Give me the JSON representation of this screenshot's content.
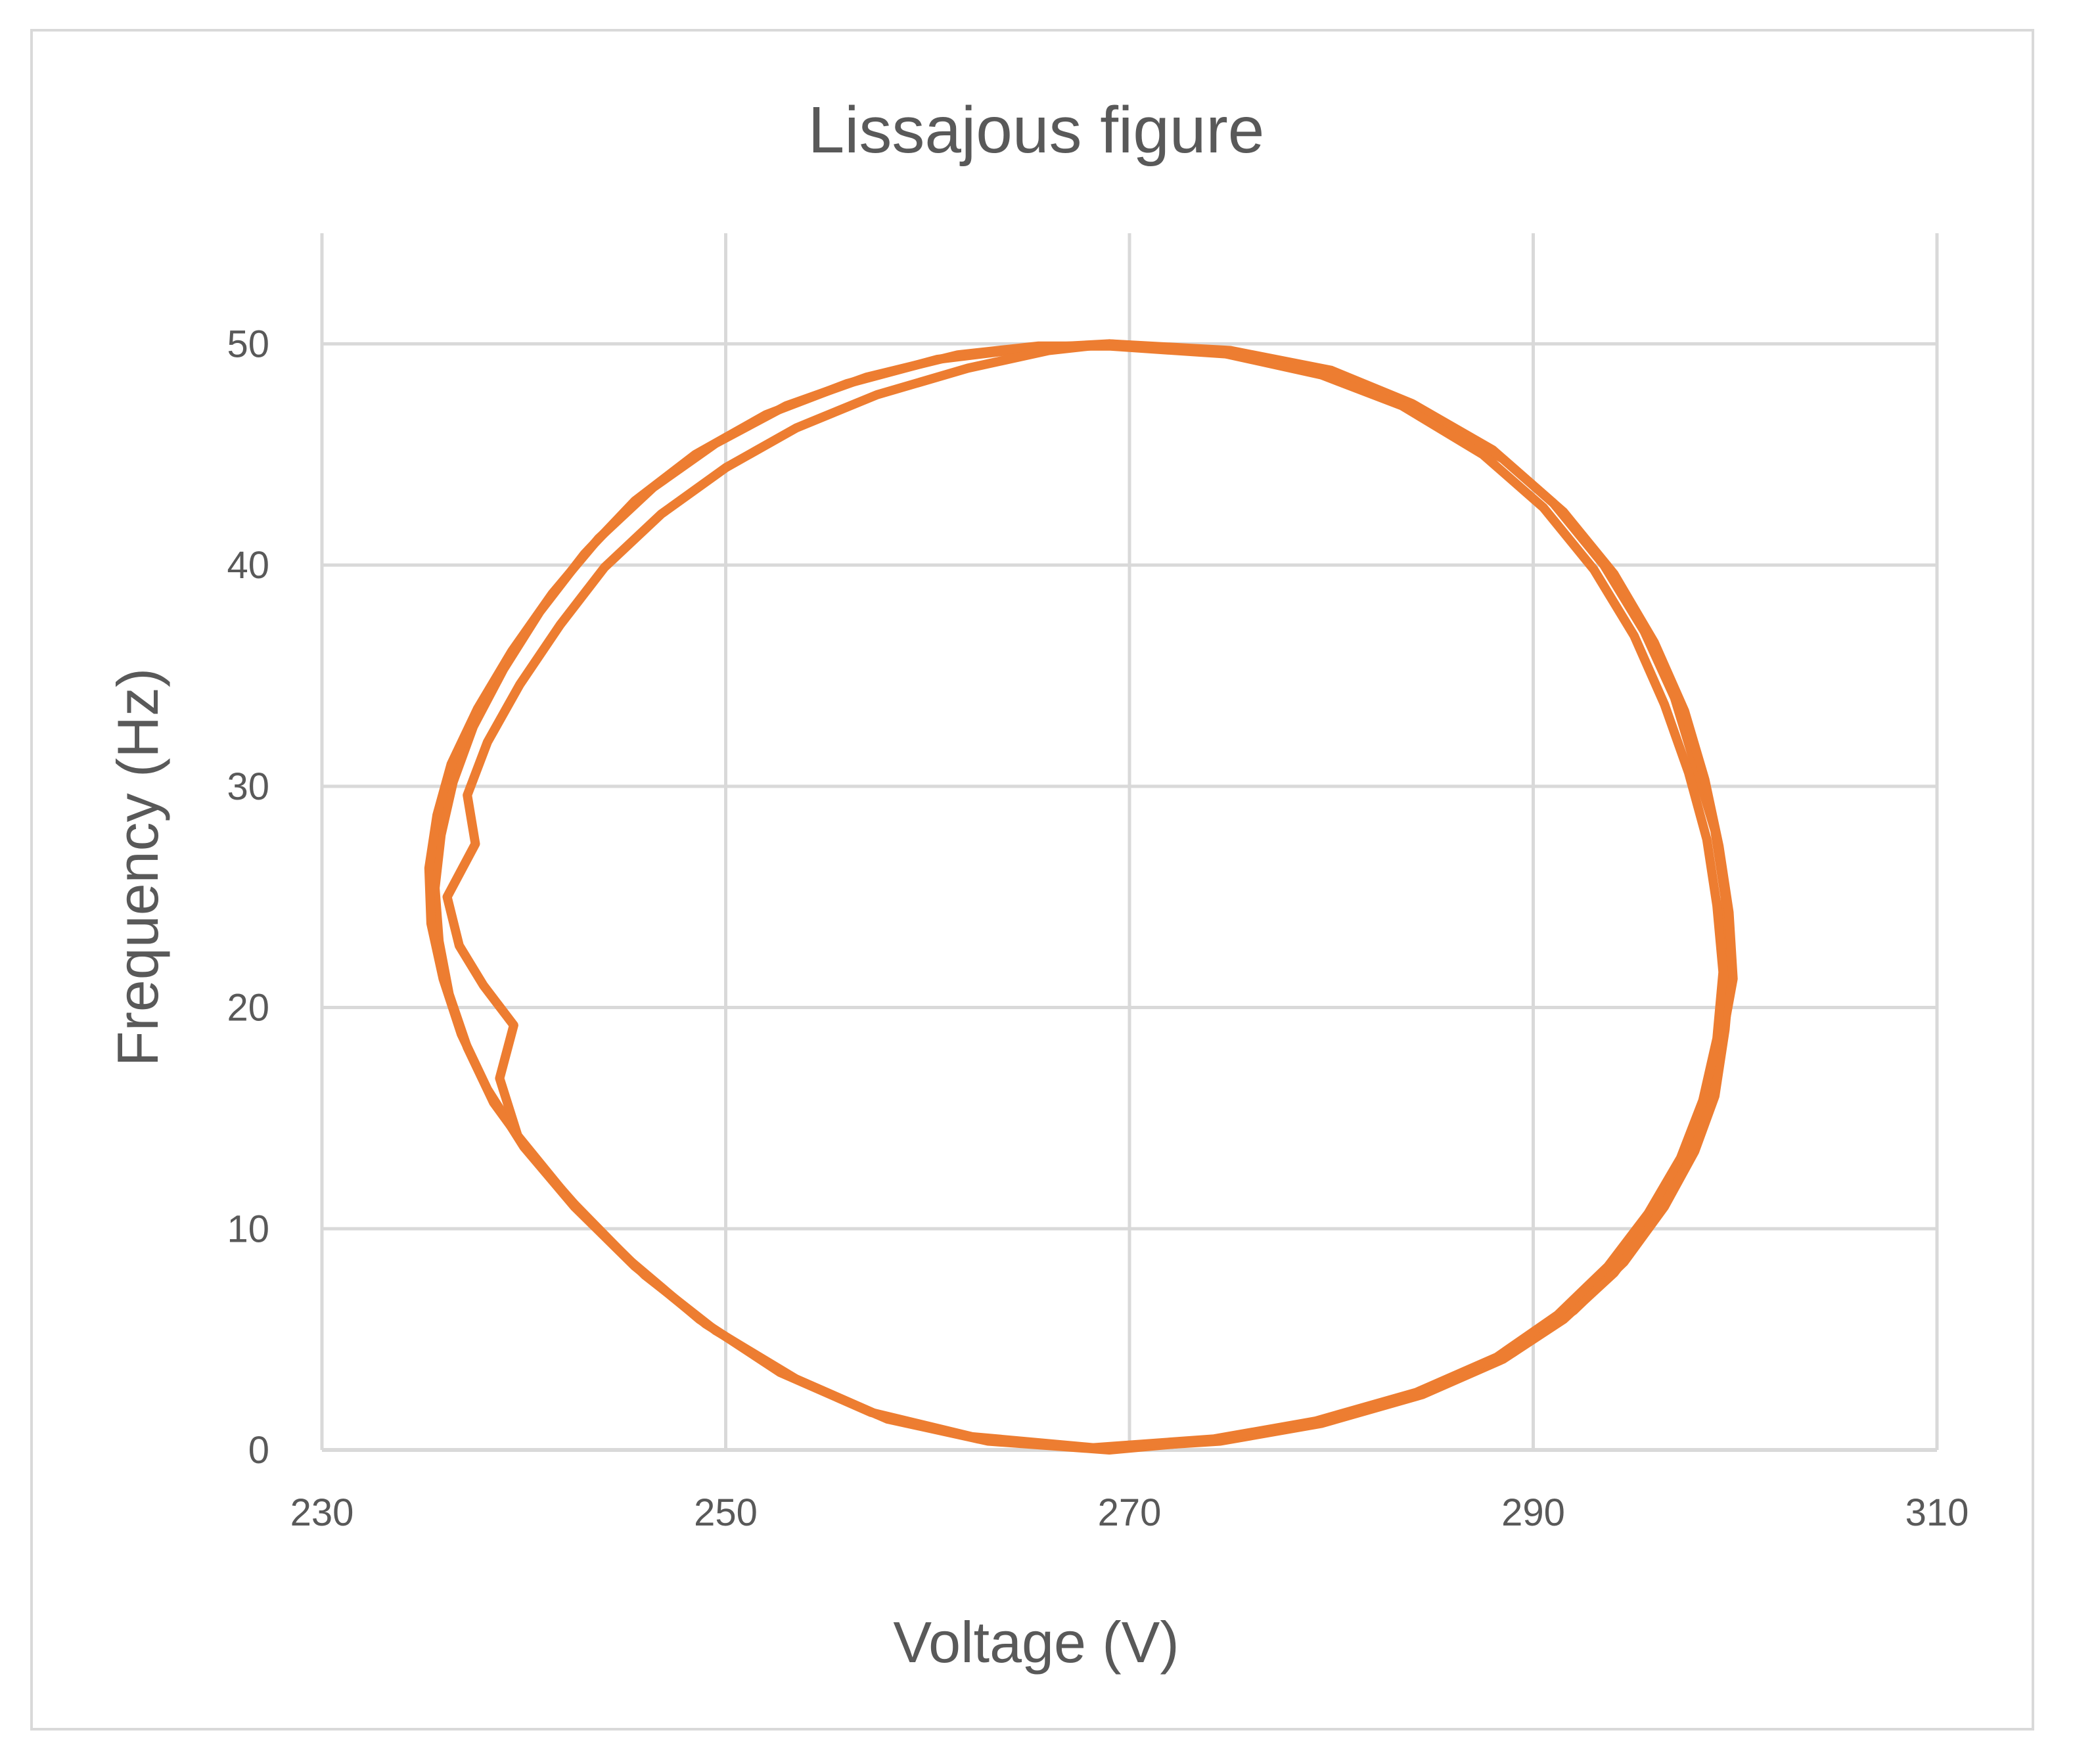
{
  "chart_data": {
    "type": "scatter",
    "title": "Lissajous figure",
    "xlabel": "Voltage (V)",
    "ylabel": "Frequency (Hz)",
    "xlim": [
      230,
      310
    ],
    "ylim": [
      0,
      55
    ],
    "xticks": [
      230,
      250,
      270,
      290,
      310
    ],
    "yticks": [
      0,
      10,
      20,
      30,
      40,
      50
    ],
    "grid": true,
    "legend": "none",
    "series_color": "#ED7D31",
    "grid_color": "#D9D9D9",
    "series": [
      {
        "points": [
          [
            269,
            50
          ],
          [
            275,
            49.7
          ],
          [
            280,
            48.8
          ],
          [
            284,
            47.3
          ],
          [
            288,
            45.2
          ],
          [
            291,
            42.8
          ],
          [
            293.5,
            40
          ],
          [
            295.5,
            37
          ],
          [
            297,
            34
          ],
          [
            298,
            31
          ],
          [
            299,
            28
          ],
          [
            299.5,
            25
          ],
          [
            299.8,
            22
          ],
          [
            299.5,
            19
          ],
          [
            299,
            16
          ],
          [
            298,
            13.5
          ],
          [
            296.5,
            11
          ],
          [
            294.5,
            8.5
          ],
          [
            292,
            6.3
          ],
          [
            289,
            4.4
          ],
          [
            285,
            2.8
          ],
          [
            280,
            1.4
          ],
          [
            275,
            0.5
          ],
          [
            269,
            0
          ],
          [
            263,
            0.4
          ],
          [
            258,
            1.4
          ],
          [
            253.5,
            3.2
          ],
          [
            249.5,
            5.4
          ],
          [
            246,
            7.9
          ],
          [
            243,
            10.6
          ],
          [
            240.5,
            13.2
          ],
          [
            238.5,
            15.7
          ],
          [
            237.2,
            18.2
          ],
          [
            236.3,
            20.6
          ],
          [
            235.8,
            23
          ],
          [
            235.6,
            25.4
          ],
          [
            235.9,
            27.8
          ],
          [
            236.5,
            30.2
          ],
          [
            237.5,
            32.7
          ],
          [
            239,
            35.3
          ],
          [
            240.8,
            37.9
          ],
          [
            243,
            40.5
          ],
          [
            245.5,
            42.9
          ],
          [
            248.5,
            45
          ],
          [
            252,
            46.8
          ],
          [
            256,
            48.2
          ],
          [
            260.5,
            49.3
          ],
          [
            265,
            49.8
          ],
          [
            269,
            50
          ]
        ]
      },
      {
        "points": [
          [
            269,
            49.9
          ],
          [
            275.5,
            49.5
          ],
          [
            280.5,
            48.5
          ],
          [
            284.5,
            47
          ],
          [
            288.5,
            44.8
          ],
          [
            291.5,
            42.4
          ],
          [
            294,
            39.6
          ],
          [
            296,
            36.5
          ],
          [
            297.5,
            33.4
          ],
          [
            298.5,
            30.3
          ],
          [
            299.2,
            27.3
          ],
          [
            299.7,
            24.3
          ],
          [
            299.9,
            21.3
          ],
          [
            299.3,
            18.3
          ],
          [
            298.7,
            15.5
          ],
          [
            297.6,
            12.9
          ],
          [
            296,
            10.4
          ],
          [
            294,
            8
          ],
          [
            291.5,
            5.9
          ],
          [
            288.5,
            4.1
          ],
          [
            284.5,
            2.5
          ],
          [
            279.5,
            1.2
          ],
          [
            274.5,
            0.4
          ],
          [
            268.5,
            0.05
          ],
          [
            262.5,
            0.5
          ],
          [
            257.5,
            1.6
          ],
          [
            253,
            3.4
          ],
          [
            249,
            5.7
          ],
          [
            245.5,
            8.3
          ],
          [
            242.5,
            11
          ],
          [
            240,
            13.7
          ],
          [
            238.2,
            16.3
          ],
          [
            236.9,
            18.8
          ],
          [
            236,
            21.3
          ],
          [
            235.4,
            23.8
          ],
          [
            235.3,
            26.3
          ],
          [
            235.7,
            28.7
          ],
          [
            236.4,
            31
          ],
          [
            237.7,
            33.5
          ],
          [
            239.4,
            36.1
          ],
          [
            241.4,
            38.7
          ],
          [
            243.7,
            41.2
          ],
          [
            246.4,
            43.5
          ],
          [
            249.5,
            45.5
          ],
          [
            253,
            47.2
          ],
          [
            257,
            48.5
          ],
          [
            261.5,
            49.5
          ],
          [
            265.5,
            49.9
          ],
          [
            269,
            49.9
          ]
        ]
      },
      {
        "points": [
          [
            269,
            50
          ],
          [
            274.5,
            49.6
          ],
          [
            279.5,
            48.6
          ],
          [
            283.5,
            47.2
          ],
          [
            287.5,
            45
          ],
          [
            290.5,
            42.6
          ],
          [
            293,
            39.8
          ],
          [
            295,
            36.8
          ],
          [
            296.5,
            33.7
          ],
          [
            297.7,
            30.6
          ],
          [
            298.6,
            27.6
          ],
          [
            299.1,
            24.6
          ],
          [
            299.4,
            21.6
          ],
          [
            299.1,
            18.6
          ],
          [
            298.4,
            15.8
          ],
          [
            297.3,
            13.2
          ],
          [
            295.7,
            10.7
          ],
          [
            293.7,
            8.3
          ],
          [
            291.2,
            6.1
          ],
          [
            288.2,
            4.2
          ],
          [
            284.2,
            2.6
          ],
          [
            279.2,
            1.3
          ],
          [
            274.2,
            0.5
          ],
          [
            268.2,
            0.1
          ],
          [
            262.2,
            0.6
          ],
          [
            257.2,
            1.7
          ],
          [
            252.7,
            3.5
          ],
          [
            248.7,
            5.9
          ],
          [
            245.2,
            8.6
          ],
          [
            242.2,
            11.4
          ],
          [
            239.7,
            14.2
          ],
          [
            238.8,
            16.8
          ],
          [
            239.5,
            19.2
          ],
          [
            238,
            21
          ],
          [
            236.8,
            22.8
          ],
          [
            236.2,
            25
          ],
          [
            237.6,
            27.4
          ],
          [
            237.2,
            29.6
          ],
          [
            238.2,
            32
          ],
          [
            239.8,
            34.6
          ],
          [
            241.8,
            37.3
          ],
          [
            244,
            39.9
          ],
          [
            246.8,
            42.3
          ],
          [
            250,
            44.4
          ],
          [
            253.5,
            46.2
          ],
          [
            257.5,
            47.7
          ],
          [
            262,
            48.9
          ],
          [
            266,
            49.7
          ],
          [
            269,
            50
          ]
        ]
      }
    ]
  }
}
